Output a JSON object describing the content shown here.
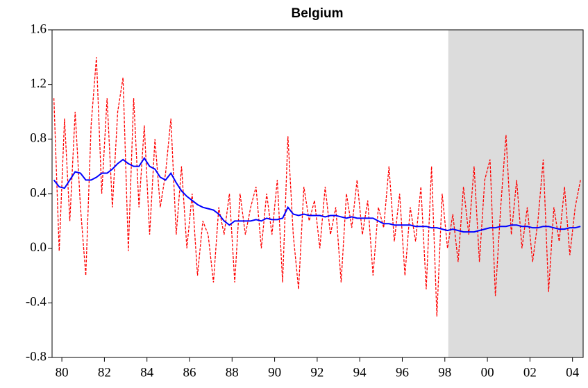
{
  "chart_data": {
    "type": "line",
    "title": "Belgium",
    "x": [
      1979.625,
      1979.875,
      1980.125,
      1980.375,
      1980.625,
      1980.875,
      1981.125,
      1981.375,
      1981.625,
      1981.875,
      1982.125,
      1982.375,
      1982.625,
      1982.875,
      1983.125,
      1983.375,
      1983.625,
      1983.875,
      1984.125,
      1984.375,
      1984.625,
      1984.875,
      1985.125,
      1985.375,
      1985.625,
      1985.875,
      1986.125,
      1986.375,
      1986.625,
      1986.875,
      1987.125,
      1987.375,
      1987.625,
      1987.875,
      1988.125,
      1988.375,
      1988.625,
      1988.875,
      1989.125,
      1989.375,
      1989.625,
      1989.875,
      1990.125,
      1990.375,
      1990.625,
      1990.875,
      1991.125,
      1991.375,
      1991.625,
      1991.875,
      1992.125,
      1992.375,
      1992.625,
      1992.875,
      1993.125,
      1993.375,
      1993.625,
      1993.875,
      1994.125,
      1994.375,
      1994.625,
      1994.875,
      1995.125,
      1995.375,
      1995.625,
      1995.875,
      1996.125,
      1996.375,
      1996.625,
      1996.875,
      1997.125,
      1997.375,
      1997.625,
      1997.875,
      1998.125,
      1998.375,
      1998.625,
      1998.875,
      1999.125,
      1999.375,
      1999.625,
      1999.875,
      2000.125,
      2000.375,
      2000.625,
      2000.875,
      2001.125,
      2001.375,
      2001.625,
      2001.875,
      2002.125,
      2002.375,
      2002.625,
      2002.875,
      2003.125,
      2003.375,
      2003.625,
      2003.875,
      2004.125,
      2004.375
    ],
    "series": [
      {
        "color": "#ff0000",
        "dashed": true,
        "values": [
          1.1,
          -0.02,
          0.95,
          0.2,
          1.0,
          0.3,
          -0.2,
          0.9,
          1.4,
          0.4,
          1.1,
          0.3,
          1.0,
          1.25,
          -0.02,
          1.1,
          0.3,
          0.9,
          0.1,
          0.8,
          0.3,
          0.55,
          0.95,
          0.1,
          0.6,
          0.0,
          0.4,
          -0.2,
          0.2,
          0.1,
          -0.25,
          0.3,
          0.1,
          0.4,
          -0.25,
          0.4,
          0.1,
          0.3,
          0.45,
          0.0,
          0.4,
          0.1,
          0.5,
          -0.25,
          0.82,
          0.1,
          -0.3,
          0.45,
          0.2,
          0.35,
          0.0,
          0.45,
          0.1,
          0.3,
          -0.25,
          0.4,
          0.15,
          0.5,
          0.1,
          0.35,
          -0.2,
          0.3,
          0.15,
          0.6,
          0.05,
          0.4,
          -0.2,
          0.3,
          0.05,
          0.45,
          -0.3,
          0.6,
          -0.5,
          0.4,
          0.0,
          0.25,
          -0.1,
          0.45,
          0.1,
          0.6,
          -0.1,
          0.5,
          0.65,
          -0.35,
          0.3,
          0.83,
          0.1,
          0.5,
          0.0,
          0.3,
          -0.1,
          0.2,
          0.65,
          -0.32,
          0.3,
          0.05,
          0.45,
          -0.05,
          0.3,
          0.5
        ]
      },
      {
        "color": "#0000ff",
        "dashed": false,
        "values": [
          0.5,
          0.45,
          0.44,
          0.5,
          0.56,
          0.55,
          0.5,
          0.5,
          0.52,
          0.55,
          0.55,
          0.58,
          0.62,
          0.65,
          0.62,
          0.6,
          0.6,
          0.66,
          0.6,
          0.58,
          0.52,
          0.5,
          0.55,
          0.48,
          0.42,
          0.38,
          0.35,
          0.32,
          0.3,
          0.29,
          0.28,
          0.25,
          0.2,
          0.17,
          0.2,
          0.2,
          0.2,
          0.2,
          0.21,
          0.2,
          0.22,
          0.21,
          0.21,
          0.22,
          0.3,
          0.25,
          0.24,
          0.25,
          0.24,
          0.24,
          0.24,
          0.23,
          0.24,
          0.24,
          0.23,
          0.22,
          0.23,
          0.22,
          0.22,
          0.22,
          0.22,
          0.2,
          0.18,
          0.18,
          0.17,
          0.17,
          0.17,
          0.17,
          0.16,
          0.16,
          0.16,
          0.15,
          0.15,
          0.14,
          0.13,
          0.14,
          0.13,
          0.12,
          0.12,
          0.12,
          0.13,
          0.14,
          0.15,
          0.15,
          0.16,
          0.16,
          0.17,
          0.17,
          0.16,
          0.16,
          0.15,
          0.15,
          0.16,
          0.16,
          0.15,
          0.14,
          0.14,
          0.15,
          0.15,
          0.16
        ]
      }
    ],
    "xlim": [
      1979.54,
      2004.5
    ],
    "xticks": [
      {
        "value": 1980,
        "label": "80"
      },
      {
        "value": 1982,
        "label": "82"
      },
      {
        "value": 1984,
        "label": "84"
      },
      {
        "value": 1986,
        "label": "86"
      },
      {
        "value": 1988,
        "label": "88"
      },
      {
        "value": 1990,
        "label": "90"
      },
      {
        "value": 1992,
        "label": "92"
      },
      {
        "value": 1994,
        "label": "94"
      },
      {
        "value": 1996,
        "label": "96"
      },
      {
        "value": 1998,
        "label": "98"
      },
      {
        "value": 2000,
        "label": "00"
      },
      {
        "value": 2002,
        "label": "02"
      },
      {
        "value": 2004,
        "label": "04"
      }
    ],
    "ylim": [
      -0.8,
      1.6
    ],
    "yticks": [
      -0.8,
      -0.4,
      {
        "value": 0,
        "label": "0.0"
      },
      0.4,
      0.8,
      1.2,
      1.6
    ],
    "shade": {
      "from": 1998.16,
      "to": 2004.5,
      "color": "#dcdcdc"
    }
  }
}
